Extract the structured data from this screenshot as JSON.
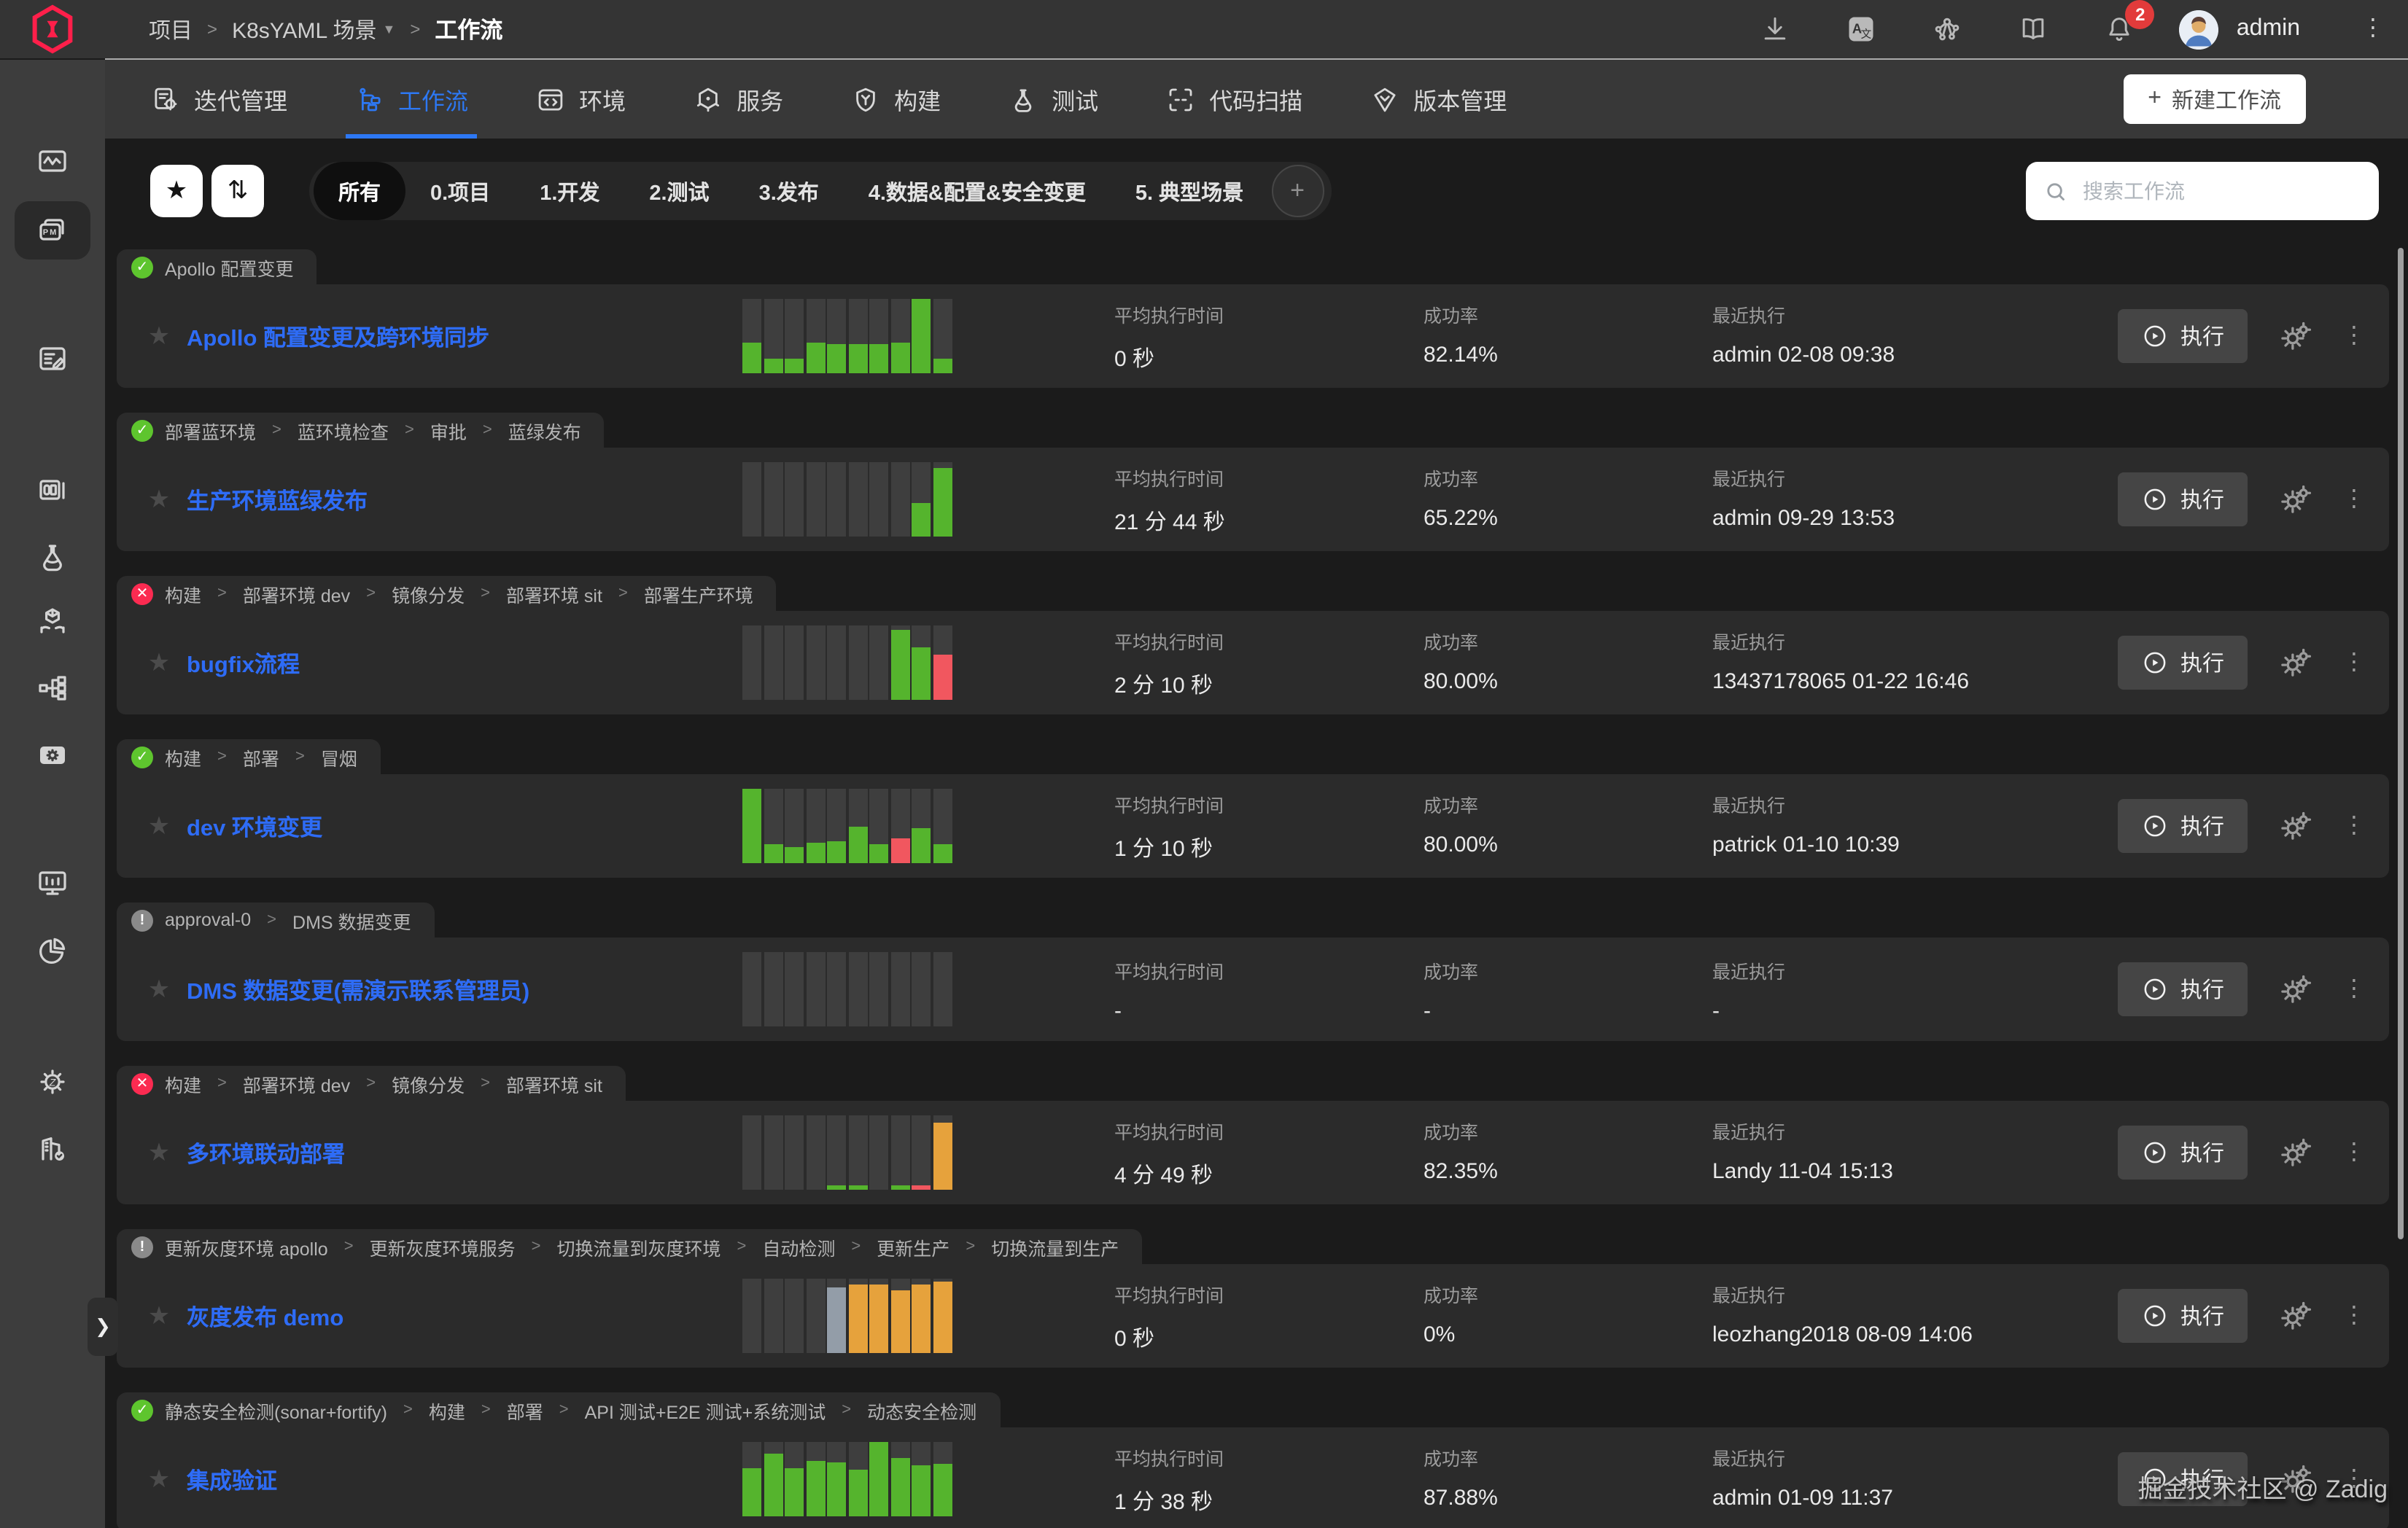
{
  "topbar": {
    "breadcrumb": [
      {
        "label": "项目",
        "current": false,
        "caret": false
      },
      {
        "label": "K8sYAML 场景",
        "current": false,
        "caret": true
      },
      {
        "label": "工作流",
        "current": true,
        "caret": false
      }
    ],
    "icons": [
      {
        "name": "download-icon",
        "key": "download"
      },
      {
        "name": "translate-icon",
        "key": "translate"
      },
      {
        "name": "integrations-icon",
        "key": "integrations"
      },
      {
        "name": "docs-icon",
        "key": "docs"
      },
      {
        "name": "notifications-bell-icon",
        "key": "bell",
        "badge": "2"
      }
    ],
    "user": "admin"
  },
  "nav": {
    "tabs": [
      {
        "key": "iteration",
        "label": "迭代管理",
        "active": false
      },
      {
        "key": "workflow",
        "label": "工作流",
        "active": true
      },
      {
        "key": "environment",
        "label": "环境",
        "active": false
      },
      {
        "key": "service",
        "label": "服务",
        "active": false
      },
      {
        "key": "build",
        "label": "构建",
        "active": false
      },
      {
        "key": "test",
        "label": "测试",
        "active": false
      },
      {
        "key": "scan",
        "label": "代码扫描",
        "active": false
      },
      {
        "key": "version",
        "label": "版本管理",
        "active": false
      }
    ],
    "new_workflow_label": "新建工作流"
  },
  "filters": {
    "favorite_glyph": "★",
    "sort_glyph": "⇅",
    "add_glyph": "+",
    "chips": [
      {
        "label": "所有",
        "active": true
      },
      {
        "label": "0.项目",
        "active": false
      },
      {
        "label": "1.开发",
        "active": false
      },
      {
        "label": "2.测试",
        "active": false
      },
      {
        "label": "3.发布",
        "active": false
      },
      {
        "label": "4.数据&配置&安全变更",
        "active": false
      },
      {
        "label": "5. 典型场景",
        "active": false
      }
    ]
  },
  "search": {
    "placeholder": "搜索工作流"
  },
  "columns": {
    "avg": "平均执行时间",
    "rate": "成功率",
    "recent": "最近执行"
  },
  "exec_label": "执行",
  "rows": [
    {
      "status": "success",
      "tags": [
        "Apollo 配置变更"
      ],
      "name": "Apollo 配置变更及跨环境同步",
      "avg": "0 秒",
      "rate": "82.14%",
      "recent": "admin 02-08 09:38",
      "bars": [
        [
          0.41,
          "g"
        ],
        [
          0.19,
          "g"
        ],
        [
          0.2,
          "g"
        ],
        [
          0.41,
          "g"
        ],
        [
          0.4,
          "g"
        ],
        [
          0.4,
          "g"
        ],
        [
          0.4,
          "g"
        ],
        [
          0.41,
          "g"
        ],
        [
          1,
          "g"
        ],
        [
          0.19,
          "g"
        ]
      ]
    },
    {
      "status": "success",
      "tags": [
        "部署蓝环境",
        "蓝环境检查",
        "审批",
        "蓝绿发布"
      ],
      "name": "生产环境蓝绿发布",
      "avg": "21 分 44 秒",
      "rate": "65.22%",
      "recent": "admin 09-29 13:53",
      "bars": [
        [
          0,
          "g"
        ],
        [
          0,
          "g"
        ],
        [
          0,
          "g"
        ],
        [
          0,
          "g"
        ],
        [
          0,
          "g"
        ],
        [
          0,
          "g"
        ],
        [
          0,
          "g"
        ],
        [
          0,
          "g"
        ],
        [
          0.45,
          "g"
        ],
        [
          0.92,
          "g"
        ]
      ]
    },
    {
      "status": "failed",
      "tags": [
        "构建",
        "部署环境 dev",
        "镜像分发",
        "部署环境 sit",
        "部署生产环境"
      ],
      "name": "bugfix流程",
      "avg": "2 分 10 秒",
      "rate": "80.00%",
      "recent": "13437178065 01-22 16:46",
      "bars": [
        [
          0,
          "g"
        ],
        [
          0,
          "g"
        ],
        [
          0,
          "g"
        ],
        [
          0,
          "g"
        ],
        [
          0,
          "g"
        ],
        [
          0,
          "g"
        ],
        [
          0,
          "g"
        ],
        [
          0.95,
          "g"
        ],
        [
          0.7,
          "g"
        ],
        [
          0.6,
          "r"
        ]
      ]
    },
    {
      "status": "success",
      "tags": [
        "构建",
        "部署",
        "冒烟"
      ],
      "name": "dev 环境变更",
      "avg": "1 分 10 秒",
      "rate": "80.00%",
      "recent": "patrick 01-10 10:39",
      "bars": [
        [
          1,
          "g"
        ],
        [
          0.25,
          "g"
        ],
        [
          0.22,
          "g"
        ],
        [
          0.28,
          "g"
        ],
        [
          0.3,
          "g"
        ],
        [
          0.5,
          "g"
        ],
        [
          0.25,
          "g"
        ],
        [
          0.33,
          "r"
        ],
        [
          0.48,
          "g"
        ],
        [
          0.25,
          "g"
        ]
      ]
    },
    {
      "status": "info",
      "tags": [
        "approval-0",
        "DMS 数据变更"
      ],
      "name": "DMS 数据变更(需演示联系管理员)",
      "avg": "-",
      "rate": "-",
      "recent": "-",
      "bars": [
        [
          0,
          "g"
        ],
        [
          0,
          "g"
        ],
        [
          0,
          "g"
        ],
        [
          0,
          "g"
        ],
        [
          0,
          "g"
        ],
        [
          0,
          "g"
        ],
        [
          0,
          "g"
        ],
        [
          0,
          "g"
        ],
        [
          0,
          "g"
        ],
        [
          0,
          "g"
        ]
      ]
    },
    {
      "status": "failed",
      "tags": [
        "构建",
        "部署环境 dev",
        "镜像分发",
        "部署环境 sit"
      ],
      "name": "多环境联动部署",
      "avg": "4 分 49 秒",
      "rate": "82.35%",
      "recent": "Landy 11-04 15:13",
      "bars": [
        [
          0,
          "g"
        ],
        [
          0,
          "g"
        ],
        [
          0,
          "g"
        ],
        [
          0,
          "g"
        ],
        [
          0.05,
          "g"
        ],
        [
          0.05,
          "g"
        ],
        [
          0,
          "g"
        ],
        [
          0.05,
          "g"
        ],
        [
          0.06,
          "r"
        ],
        [
          0.9,
          "o"
        ]
      ]
    },
    {
      "status": "info",
      "tags": [
        "更新灰度环境 apollo",
        "更新灰度环境服务",
        "切换流量到灰度环境",
        "自动检测",
        "更新生产",
        "切换流量到生产"
      ],
      "name": "灰度发布 demo",
      "avg": "0 秒",
      "rate": "0%",
      "recent": "leozhang2018 08-09 14:06",
      "bars": [
        [
          0,
          "g"
        ],
        [
          0,
          "g"
        ],
        [
          0,
          "g"
        ],
        [
          0,
          "g"
        ],
        [
          0.88,
          "s"
        ],
        [
          0.93,
          "o"
        ],
        [
          0.93,
          "o"
        ],
        [
          0.85,
          "o"
        ],
        [
          0.93,
          "o"
        ],
        [
          0.97,
          "o"
        ]
      ]
    },
    {
      "status": "success",
      "tags": [
        "静态安全检测(sonar+fortify)",
        "构建",
        "部署",
        "API 测试+E2E 测试+系统测试",
        "动态安全检测"
      ],
      "name": "集成验证",
      "avg": "1 分 38 秒",
      "rate": "87.88%",
      "recent": "admin 01-09 11:37",
      "bars": [
        [
          0.65,
          "g"
        ],
        [
          0.85,
          "g"
        ],
        [
          0.65,
          "g"
        ],
        [
          0.75,
          "g"
        ],
        [
          0.73,
          "g"
        ],
        [
          0.62,
          "g"
        ],
        [
          1,
          "g"
        ],
        [
          0.78,
          "g"
        ],
        [
          0.68,
          "g"
        ],
        [
          0.7,
          "g"
        ]
      ]
    }
  ],
  "sidebar": {
    "items": [
      {
        "key": "dashboard",
        "active": false
      },
      {
        "key": "projects",
        "active": true
      },
      {
        "key": "release-plan",
        "active": false
      },
      {
        "key": "template-library",
        "active": false
      },
      {
        "key": "test-center",
        "active": false
      },
      {
        "key": "delivery-center",
        "active": false
      },
      {
        "key": "data-view",
        "active": false
      },
      {
        "key": "plugins",
        "active": false
      },
      {
        "key": "operation-monitor",
        "active": false
      },
      {
        "key": "data-statistics",
        "active": false
      },
      {
        "key": "system-settings",
        "active": false
      },
      {
        "key": "enterprise",
        "active": false
      }
    ],
    "expand_glyph": "❯"
  },
  "watermark": "掘金技术社区 @ Zadig",
  "status_glyphs": {
    "success": "✓",
    "failed": "✕",
    "info": "!"
  },
  "colors": {
    "accent_blue": "#2d78f4",
    "bar_green": "#55b42d",
    "bar_red": "#f1575f",
    "bar_orange": "#e6a23c",
    "bar_silver": "#939da8",
    "status_green": "#5ec52e",
    "status_red": "#fb2b51",
    "status_gray": "#8a8a8a",
    "logo_red": "#ff1f4a",
    "badge_red": "#e23b3b"
  }
}
